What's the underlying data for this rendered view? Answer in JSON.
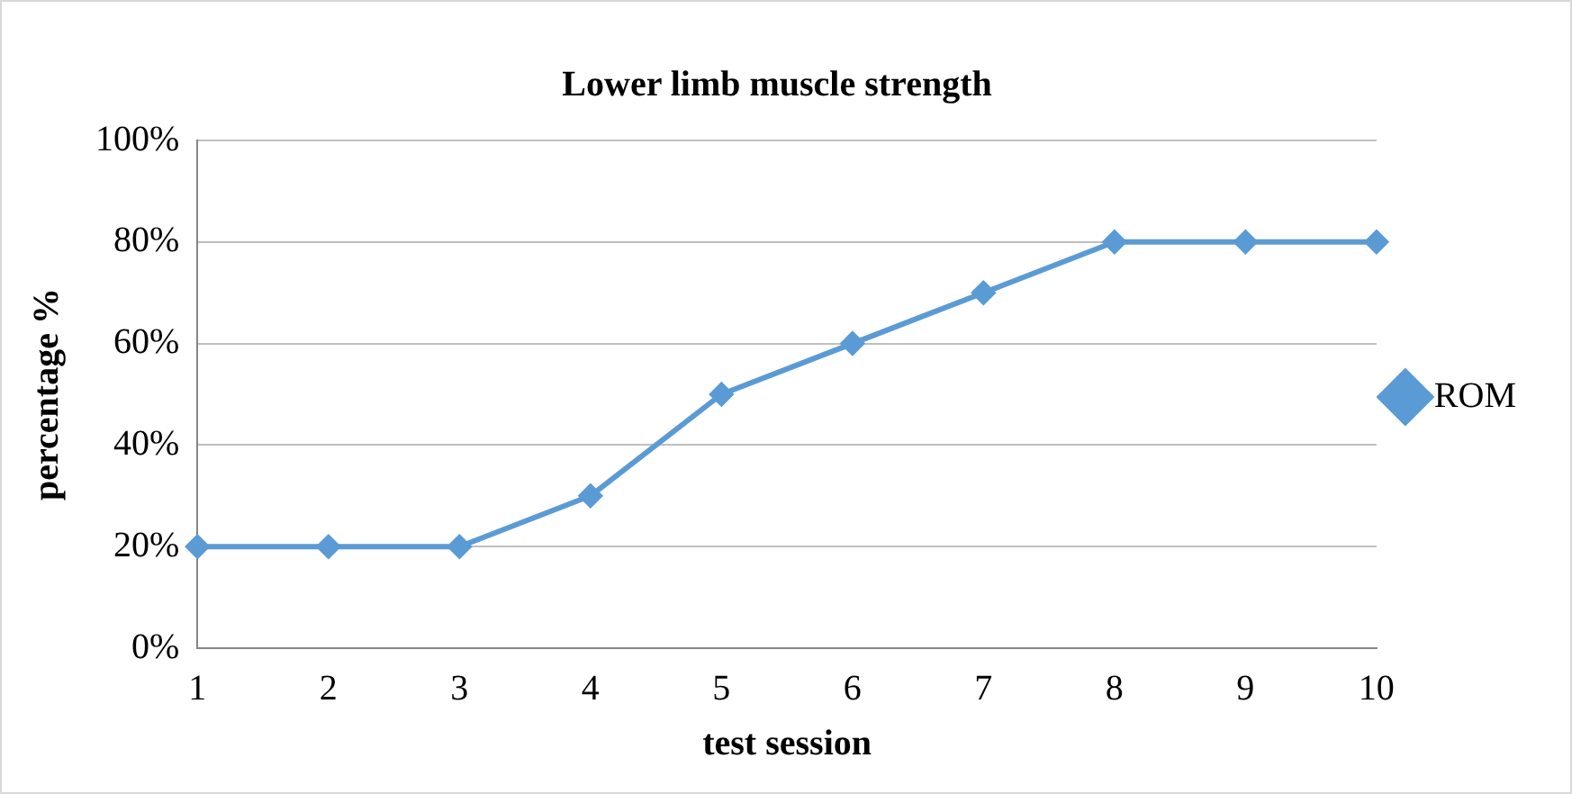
{
  "chart_data": {
    "type": "line",
    "title": "Lower limb muscle strength",
    "xlabel": "test session",
    "ylabel": "percentage %",
    "categories": [
      "1",
      "2",
      "3",
      "4",
      "5",
      "6",
      "7",
      "8",
      "9",
      "10"
    ],
    "series": [
      {
        "name": "ROM",
        "color": "#5b9bd5",
        "values": [
          20,
          20,
          20,
          30,
          50,
          60,
          70,
          80,
          80,
          80
        ]
      }
    ],
    "ylim": [
      0,
      100
    ],
    "yticks": [
      {
        "value": 0,
        "label": "0%"
      },
      {
        "value": 20,
        "label": "20%"
      },
      {
        "value": 40,
        "label": "40%"
      },
      {
        "value": 60,
        "label": "60%"
      },
      {
        "value": 80,
        "label": "80%"
      },
      {
        "value": 100,
        "label": "100%"
      }
    ],
    "grid": "y",
    "legend": "right",
    "marker": "diamond",
    "line_style": "solid"
  }
}
